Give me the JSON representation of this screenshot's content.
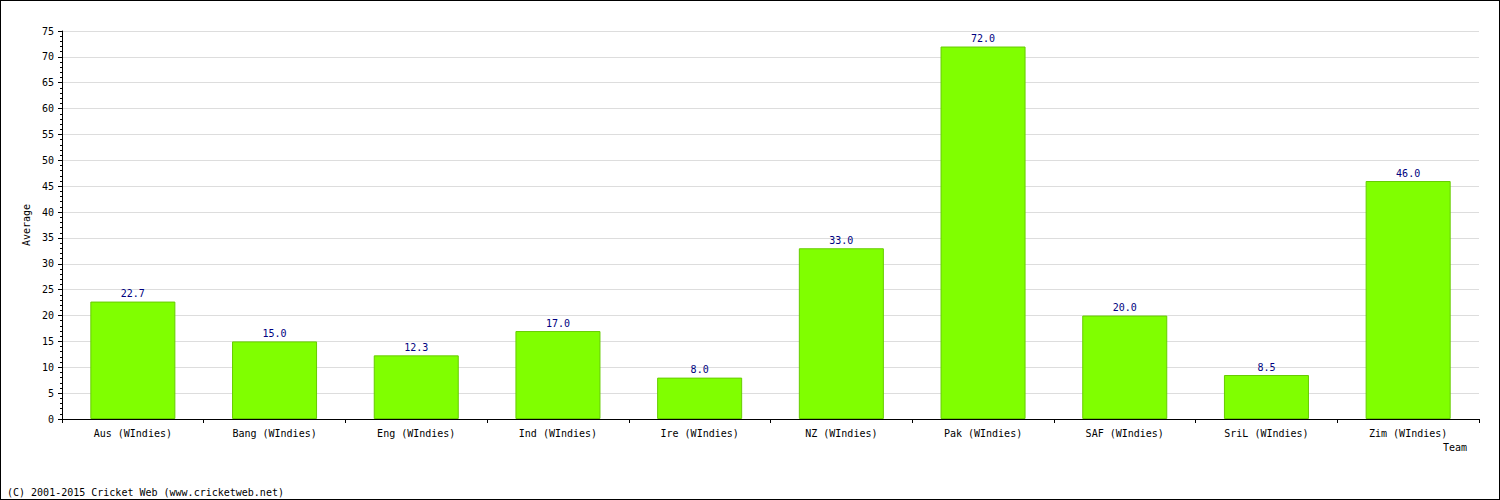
{
  "chart_data": {
    "type": "bar",
    "categories": [
      "Aus (WIndies)",
      "Bang (WIndies)",
      "Eng (WIndies)",
      "Ind (WIndies)",
      "Ire (WIndies)",
      "NZ (WIndies)",
      "Pak (WIndies)",
      "SAF (WIndies)",
      "SriL (WIndies)",
      "Zim (WIndies)"
    ],
    "values": [
      22.7,
      15.0,
      12.3,
      17.0,
      8.0,
      33.0,
      72.0,
      20.0,
      8.5,
      46.0
    ],
    "value_labels": [
      "22.7",
      "15.0",
      "12.3",
      "17.0",
      "8.0",
      "33.0",
      "72.0",
      "20.0",
      "8.5",
      "46.0"
    ],
    "data_labels": true,
    "color": "#80ff00",
    "x_label": "Team",
    "y_label": "Average",
    "annotations": [
      "(C) 2001-2015 Cricket Web (www.cricketweb.net)"
    ],
    "ylim": [
      0,
      75
    ],
    "yticks": [
      0,
      5,
      10,
      15,
      20,
      25,
      30,
      35,
      40,
      45,
      50,
      55,
      60,
      65,
      70,
      75
    ],
    "grid": true
  }
}
